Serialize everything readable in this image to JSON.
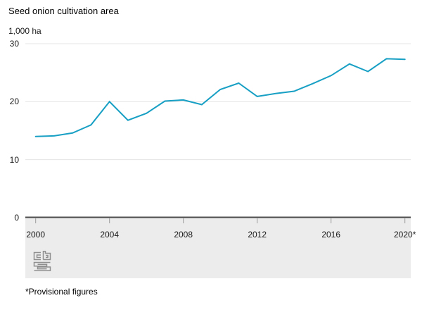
{
  "title": "Seed onion cultivation area",
  "unit_label": "1,000 ha",
  "footnote": "*Provisional figures",
  "colors": {
    "line": "#189fc4",
    "grid": "#e4e4e4",
    "axis": "#4a4a4a",
    "tick": "#9b9b9b",
    "footer_bg": "#ececec",
    "text": "#1a1a1a",
    "logo": "#8f8f8f"
  },
  "chart_data": {
    "type": "line",
    "title": "Seed onion cultivation area",
    "ylabel": "1,000 ha",
    "series_name": "Seed onion cultivation area",
    "x": [
      2000,
      2001,
      2002,
      2003,
      2004,
      2005,
      2006,
      2007,
      2008,
      2009,
      2010,
      2011,
      2012,
      2013,
      2014,
      2015,
      2016,
      2017,
      2018,
      2019,
      2020
    ],
    "values": [
      14.0,
      14.1,
      14.6,
      16.0,
      20.0,
      16.8,
      18.0,
      20.1,
      20.3,
      19.5,
      22.1,
      23.2,
      20.9,
      21.4,
      21.8,
      23.1,
      24.5,
      26.5,
      25.2,
      27.4,
      27.3
    ],
    "xlim": [
      2000,
      2020
    ],
    "ylim": [
      0,
      30
    ],
    "yticks": [
      0,
      10,
      20,
      30
    ],
    "xtick_years": [
      2000,
      2004,
      2008,
      2012,
      2016,
      2020
    ],
    "xtick_labels": [
      "2000",
      "2004",
      "2008",
      "2012",
      "2016",
      "2020*"
    ],
    "grid": "horizontal",
    "legend": "none",
    "footnote": "*Provisional figures",
    "last_point_provisional": true
  }
}
